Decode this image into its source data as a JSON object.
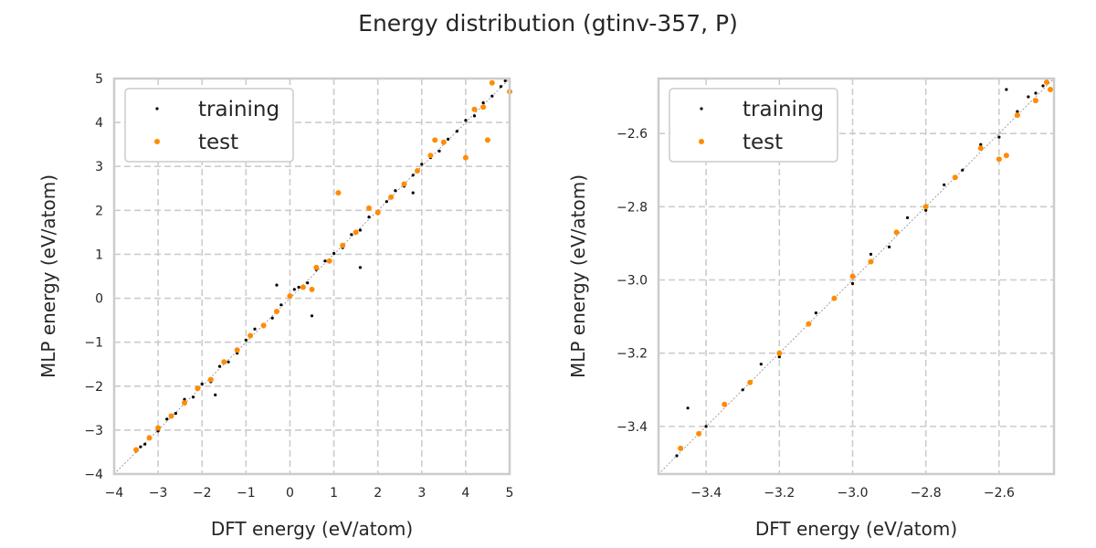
{
  "figure_title": "Energy distribution (gtinv-357, P)",
  "colors": {
    "training": "#000000",
    "test": "#ff8c00",
    "grid": "#cccccc",
    "spine": "#cccccc"
  },
  "chart_data": [
    {
      "type": "scatter",
      "xlabel": "DFT energy (eV/atom)",
      "ylabel": "MLP energy (eV/atom)",
      "xlim": [
        -4,
        5
      ],
      "ylim": [
        -4,
        5
      ],
      "xticks": [
        -4,
        -3,
        -2,
        -1,
        0,
        1,
        2,
        3,
        4,
        5
      ],
      "yticks": [
        -4,
        -3,
        -2,
        -1,
        0,
        1,
        2,
        3,
        4,
        5
      ],
      "xtick_labels": [
        "−4",
        "−3",
        "−2",
        "−1",
        "0",
        "1",
        "2",
        "3",
        "4",
        "5"
      ],
      "ytick_labels": [
        "−4",
        "−3",
        "−2",
        "−1",
        "0",
        "1",
        "2",
        "3",
        "4",
        "5"
      ],
      "grid": true,
      "diagonal": true,
      "legend_position": "top-left",
      "series": [
        {
          "name": "training",
          "color": "#000000",
          "points": [
            [
              -3.5,
              -3.48
            ],
            [
              -3.4,
              -3.38
            ],
            [
              -3.3,
              -3.32
            ],
            [
              -3.2,
              -3.15
            ],
            [
              -3.0,
              -3.02
            ],
            [
              -2.8,
              -2.75
            ],
            [
              -2.6,
              -2.62
            ],
            [
              -2.4,
              -2.3
            ],
            [
              -2.2,
              -2.25
            ],
            [
              -2.0,
              -1.95
            ],
            [
              -1.8,
              -1.9
            ],
            [
              -1.7,
              -2.2
            ],
            [
              -1.6,
              -1.55
            ],
            [
              -1.4,
              -1.45
            ],
            [
              -1.2,
              -1.25
            ],
            [
              -1.0,
              -0.95
            ],
            [
              -0.8,
              -0.7
            ],
            [
              -0.6,
              -0.65
            ],
            [
              -0.4,
              -0.45
            ],
            [
              -0.3,
              0.3
            ],
            [
              -0.2,
              -0.15
            ],
            [
              0.0,
              0.02
            ],
            [
              0.1,
              0.2
            ],
            [
              0.2,
              0.25
            ],
            [
              0.4,
              0.35
            ],
            [
              0.5,
              -0.4
            ],
            [
              0.6,
              0.65
            ],
            [
              0.8,
              0.85
            ],
            [
              1.0,
              1.02
            ],
            [
              1.2,
              1.15
            ],
            [
              1.4,
              1.45
            ],
            [
              1.6,
              1.55
            ],
            [
              1.6,
              0.7
            ],
            [
              1.8,
              1.85
            ],
            [
              2.0,
              1.95
            ],
            [
              2.2,
              2.2
            ],
            [
              2.4,
              2.45
            ],
            [
              2.6,
              2.55
            ],
            [
              2.8,
              2.8
            ],
            [
              2.8,
              2.4
            ],
            [
              3.0,
              3.05
            ],
            [
              3.2,
              3.2
            ],
            [
              3.4,
              3.35
            ],
            [
              3.6,
              3.62
            ],
            [
              3.8,
              3.8
            ],
            [
              4.0,
              4.05
            ],
            [
              4.2,
              4.15
            ],
            [
              4.4,
              4.45
            ],
            [
              4.6,
              4.6
            ],
            [
              4.8,
              4.82
            ],
            [
              4.9,
              4.95
            ]
          ]
        },
        {
          "name": "test",
          "color": "#ff8c00",
          "points": [
            [
              -3.5,
              -3.45
            ],
            [
              -3.2,
              -3.18
            ],
            [
              -3.0,
              -2.95
            ],
            [
              -2.7,
              -2.68
            ],
            [
              -2.4,
              -2.38
            ],
            [
              -2.1,
              -2.05
            ],
            [
              -1.8,
              -1.85
            ],
            [
              -1.5,
              -1.45
            ],
            [
              -1.2,
              -1.18
            ],
            [
              -0.9,
              -0.85
            ],
            [
              -0.6,
              -0.62
            ],
            [
              -0.3,
              -0.3
            ],
            [
              0.0,
              0.05
            ],
            [
              0.3,
              0.25
            ],
            [
              0.5,
              0.2
            ],
            [
              0.6,
              0.7
            ],
            [
              0.9,
              0.85
            ],
            [
              1.1,
              2.4
            ],
            [
              1.2,
              1.2
            ],
            [
              1.5,
              1.5
            ],
            [
              1.8,
              2.05
            ],
            [
              2.0,
              1.95
            ],
            [
              2.3,
              2.3
            ],
            [
              2.6,
              2.6
            ],
            [
              2.9,
              2.9
            ],
            [
              3.2,
              3.25
            ],
            [
              3.3,
              3.6
            ],
            [
              3.5,
              3.55
            ],
            [
              4.0,
              3.2
            ],
            [
              4.2,
              4.3
            ],
            [
              4.4,
              4.35
            ],
            [
              4.5,
              3.6
            ],
            [
              4.6,
              4.9
            ],
            [
              5.0,
              4.7
            ]
          ]
        }
      ]
    },
    {
      "type": "scatter",
      "xlabel": "DFT energy (eV/atom)",
      "ylabel": "MLP energy (eV/atom)",
      "xlim": [
        -3.53,
        -2.45
      ],
      "ylim": [
        -3.53,
        -2.45
      ],
      "xticks": [
        -3.4,
        -3.2,
        -3.0,
        -2.8,
        -2.6
      ],
      "yticks": [
        -3.4,
        -3.2,
        -3.0,
        -2.8,
        -2.6
      ],
      "xtick_labels": [
        "−3.4",
        "−3.2",
        "−3.0",
        "−2.8",
        "−2.6"
      ],
      "ytick_labels": [
        "−3.4",
        "−3.2",
        "−3.0",
        "−2.8",
        "−2.6"
      ],
      "grid": true,
      "diagonal": true,
      "legend_position": "top-left",
      "series": [
        {
          "name": "training",
          "color": "#000000",
          "points": [
            [
              -3.48,
              -3.48
            ],
            [
              -3.45,
              -3.35
            ],
            [
              -3.4,
              -3.4
            ],
            [
              -3.3,
              -3.3
            ],
            [
              -3.25,
              -3.23
            ],
            [
              -3.2,
              -3.21
            ],
            [
              -3.1,
              -3.09
            ],
            [
              -3.0,
              -3.01
            ],
            [
              -2.95,
              -2.93
            ],
            [
              -2.9,
              -2.91
            ],
            [
              -2.85,
              -2.83
            ],
            [
              -2.8,
              -2.81
            ],
            [
              -2.75,
              -2.74
            ],
            [
              -2.7,
              -2.7
            ],
            [
              -2.65,
              -2.63
            ],
            [
              -2.6,
              -2.61
            ],
            [
              -2.58,
              -2.48
            ],
            [
              -2.55,
              -2.54
            ],
            [
              -2.52,
              -2.5
            ],
            [
              -2.5,
              -2.49
            ],
            [
              -2.48,
              -2.47
            ]
          ]
        },
        {
          "name": "test",
          "color": "#ff8c00",
          "points": [
            [
              -3.47,
              -3.46
            ],
            [
              -3.42,
              -3.42
            ],
            [
              -3.35,
              -3.34
            ],
            [
              -3.28,
              -3.28
            ],
            [
              -3.2,
              -3.2
            ],
            [
              -3.12,
              -3.12
            ],
            [
              -3.05,
              -3.05
            ],
            [
              -3.0,
              -2.99
            ],
            [
              -2.95,
              -2.95
            ],
            [
              -2.88,
              -2.87
            ],
            [
              -2.8,
              -2.8
            ],
            [
              -2.72,
              -2.72
            ],
            [
              -2.65,
              -2.64
            ],
            [
              -2.6,
              -2.67
            ],
            [
              -2.58,
              -2.66
            ],
            [
              -2.55,
              -2.55
            ],
            [
              -2.5,
              -2.51
            ],
            [
              -2.47,
              -2.46
            ],
            [
              -2.46,
              -2.48
            ]
          ]
        }
      ]
    }
  ]
}
